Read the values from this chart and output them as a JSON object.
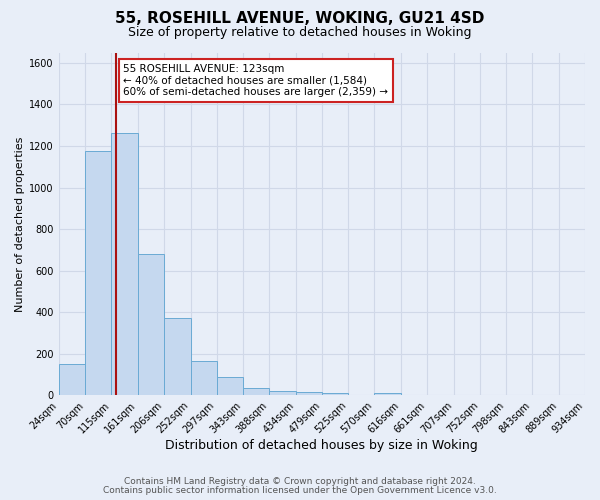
{
  "title": "55, ROSEHILL AVENUE, WOKING, GU21 4SD",
  "subtitle": "Size of property relative to detached houses in Woking",
  "xlabel": "Distribution of detached houses by size in Woking",
  "ylabel": "Number of detached properties",
  "bar_edges": [
    24,
    70,
    115,
    161,
    206,
    252,
    297,
    343,
    388,
    434,
    479,
    525,
    570,
    616,
    661,
    707,
    752,
    798,
    843,
    889,
    934
  ],
  "bar_heights": [
    150,
    1175,
    1265,
    680,
    375,
    165,
    90,
    35,
    22,
    15,
    10,
    0,
    12,
    0,
    0,
    0,
    0,
    0,
    0,
    0
  ],
  "bar_color": "#c5d8ef",
  "bar_edge_color": "#6aaad4",
  "reference_line_x": 123,
  "reference_line_color": "#aa1111",
  "annotation_line1": "55 ROSEHILL AVENUE: 123sqm",
  "annotation_line2": "← 40% of detached houses are smaller (1,584)",
  "annotation_line3": "60% of semi-detached houses are larger (2,359) →",
  "annotation_box_facecolor": "#ffffff",
  "annotation_box_edgecolor": "#cc2222",
  "ylim": [
    0,
    1650
  ],
  "yticks": [
    0,
    200,
    400,
    600,
    800,
    1000,
    1200,
    1400,
    1600
  ],
  "tick_labels": [
    "24sqm",
    "70sqm",
    "115sqm",
    "161sqm",
    "206sqm",
    "252sqm",
    "297sqm",
    "343sqm",
    "388sqm",
    "434sqm",
    "479sqm",
    "525sqm",
    "570sqm",
    "616sqm",
    "661sqm",
    "707sqm",
    "752sqm",
    "798sqm",
    "843sqm",
    "889sqm",
    "934sqm"
  ],
  "footer_line1": "Contains HM Land Registry data © Crown copyright and database right 2024.",
  "footer_line2": "Contains public sector information licensed under the Open Government Licence v3.0.",
  "background_color": "#e8eef8",
  "grid_color": "#d0d8e8",
  "title_fontsize": 11,
  "subtitle_fontsize": 9,
  "xlabel_fontsize": 9,
  "ylabel_fontsize": 8,
  "tick_fontsize": 7,
  "annot_fontsize": 7.5,
  "footer_fontsize": 6.5
}
